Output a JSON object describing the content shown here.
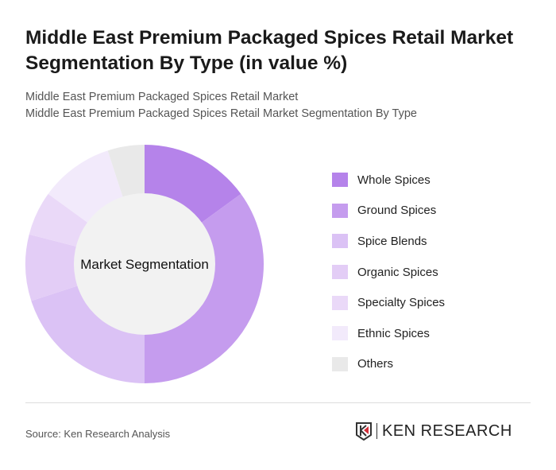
{
  "title": "Middle East Premium Packaged Spices Retail Market Segmentation By Type (in value %)",
  "subtitle1": "Middle East Premium Packaged Spices Retail Market",
  "subtitle2": "Middle East Premium Packaged Spices Retail Market Segmentation By Type",
  "source": "Source: Ken Research Analysis",
  "logo_text": "KEN RESEARCH",
  "chart_data": {
    "type": "pie",
    "donut": true,
    "center_label": "Market Segmentation",
    "legend_position": "right",
    "categories": [
      "Whole Spices",
      "Ground Spices",
      "Spice Blends",
      "Organic Spices",
      "Specialty Spices",
      "Ethnic Spices",
      "Others"
    ],
    "values": [
      15,
      35,
      20,
      9,
      6,
      10,
      5
    ],
    "colors": [
      "#b583ea",
      "#c59cee",
      "#dbc2f5",
      "#e3cdf6",
      "#ead9f8",
      "#f2eafb",
      "#e9e9e9"
    ]
  }
}
